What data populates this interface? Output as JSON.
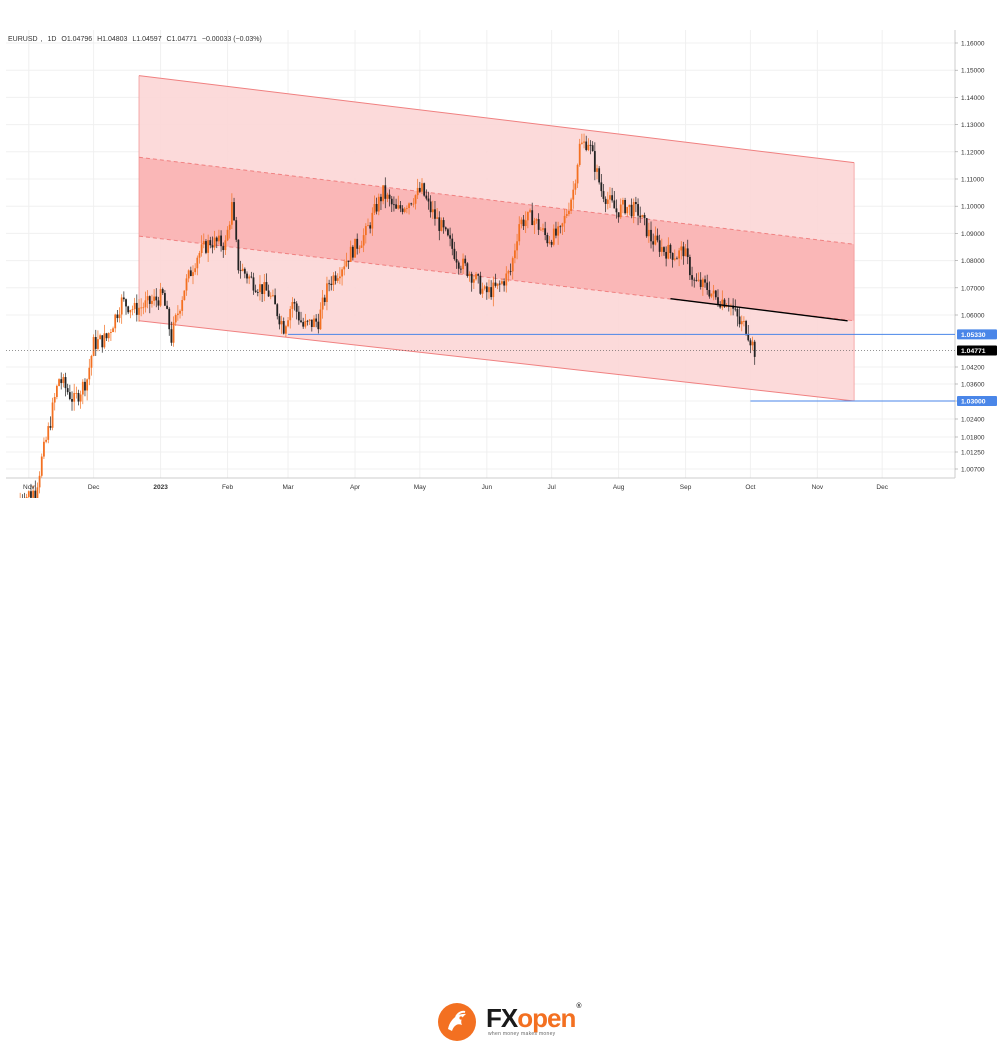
{
  "header": {
    "symbol": "EURUSD",
    "timeframe": "1D",
    "open": "O1.04796",
    "high": "H1.04803",
    "low": "L1.04597",
    "close": "C1.04771",
    "change": "−0.00033 (−0.03%)"
  },
  "brand": {
    "fx": "FX",
    "open": "open",
    "reg": "®",
    "slogan": "when money makes money"
  },
  "colors": {
    "bull": "#f37021",
    "bear": "#222222",
    "channel_outer": "#fcd6d6",
    "channel_inner": "#f9b3b3",
    "channel_line": "#f08080",
    "support_line": "#4a86e8",
    "trend_line": "#000000"
  },
  "chart_data": {
    "type": "candlestick",
    "symbol": "EURUSD",
    "x_tick_labels": [
      "Nov",
      "Dec",
      "2023",
      "Feb",
      "Mar",
      "Apr",
      "May",
      "Jun",
      "Jul",
      "Aug",
      "Sep",
      "Oct",
      "Nov",
      "Dec"
    ],
    "x_tick_dates": [
      "2022-11-01",
      "2022-12-01",
      "2023-01-01",
      "2023-02-01",
      "2023-03-01",
      "2023-04-01",
      "2023-05-01",
      "2023-06-01",
      "2023-07-01",
      "2023-08-01",
      "2023-09-01",
      "2023-10-01",
      "2023-11-01",
      "2023-12-01"
    ],
    "y_tick_labels": [
      "1.16000",
      "1.15000",
      "1.14000",
      "1.13000",
      "1.12000",
      "1.11000",
      "1.10000",
      "1.09000",
      "1.08000",
      "1.07000",
      "1.06000",
      "1.04200",
      "1.03600",
      "1.03000",
      "1.02400",
      "1.01800",
      "1.01250",
      "1.00700"
    ],
    "y_tick_values": [
      1.16,
      1.15,
      1.14,
      1.13,
      1.12,
      1.11,
      1.1,
      1.09,
      1.08,
      1.07,
      1.06,
      1.042,
      1.036,
      1.03,
      1.024,
      1.018,
      1.0125,
      1.007
    ],
    "price_labels": [
      {
        "value": "1.05330",
        "kind": "level"
      },
      {
        "value": "1.04771",
        "kind": "last"
      },
      {
        "value": "1.03000",
        "kind": "level"
      }
    ],
    "horizontal_levels": [
      {
        "price": 1.0533,
        "from": "2023-03-01",
        "to": "2023-12-31",
        "color": "#4a86e8"
      },
      {
        "price": 1.03,
        "from": "2023-10-01",
        "to": "2023-12-31",
        "color": "#4a86e8"
      }
    ],
    "trend_lines": [
      {
        "points": [
          [
            "2023-08-25",
            1.066
          ],
          [
            "2023-11-15",
            1.058
          ]
        ],
        "color": "#000000"
      }
    ],
    "regression_channel": {
      "start": "2022-12-22",
      "end": "2023-11-18",
      "upper": [
        1.148,
        1.116
      ],
      "upper_inner": [
        1.118,
        1.086
      ],
      "center": [
        1.089,
        1.058
      ],
      "lower": [
        1.058,
        1.03
      ]
    },
    "candle_path": [
      [
        "2022-10-27",
        0.997
      ],
      [
        "2022-11-04",
        1.0
      ],
      [
        "2022-11-10",
        1.02
      ],
      [
        "2022-11-15",
        1.038
      ],
      [
        "2022-11-22",
        1.03
      ],
      [
        "2022-11-28",
        1.038
      ],
      [
        "2022-12-01",
        1.05
      ],
      [
        "2022-12-07",
        1.052
      ],
      [
        "2022-12-14",
        1.065
      ],
      [
        "2022-12-20",
        1.062
      ],
      [
        "2022-12-26",
        1.064
      ],
      [
        "2023-01-02",
        1.067
      ],
      [
        "2023-01-06",
        1.052
      ],
      [
        "2023-01-12",
        1.07
      ],
      [
        "2023-01-18",
        1.082
      ],
      [
        "2023-01-24",
        1.087
      ],
      [
        "2023-01-31",
        1.086
      ],
      [
        "2023-02-03",
        1.1
      ],
      [
        "2023-02-06",
        1.078
      ],
      [
        "2023-02-13",
        1.072
      ],
      [
        "2023-02-20",
        1.068
      ],
      [
        "2023-02-27",
        1.056
      ],
      [
        "2023-03-03",
        1.065
      ],
      [
        "2023-03-08",
        1.056
      ],
      [
        "2023-03-15",
        1.058
      ],
      [
        "2023-03-20",
        1.072
      ],
      [
        "2023-03-24",
        1.076
      ],
      [
        "2023-03-31",
        1.084
      ],
      [
        "2023-04-06",
        1.09
      ],
      [
        "2023-04-11",
        1.1
      ],
      [
        "2023-04-14",
        1.105
      ],
      [
        "2023-04-20",
        1.098
      ],
      [
        "2023-04-26",
        1.102
      ],
      [
        "2023-05-02",
        1.106
      ],
      [
        "2023-05-05",
        1.1
      ],
      [
        "2023-05-11",
        1.092
      ],
      [
        "2023-05-19",
        1.08
      ],
      [
        "2023-05-26",
        1.074
      ],
      [
        "2023-05-31",
        1.068
      ],
      [
        "2023-06-06",
        1.07
      ],
      [
        "2023-06-12",
        1.076
      ],
      [
        "2023-06-16",
        1.094
      ],
      [
        "2023-06-22",
        1.096
      ],
      [
        "2023-06-29",
        1.088
      ],
      [
        "2023-07-05",
        1.09
      ],
      [
        "2023-07-11",
        1.106
      ],
      [
        "2023-07-14",
        1.122
      ],
      [
        "2023-07-18",
        1.124
      ],
      [
        "2023-07-24",
        1.106
      ],
      [
        "2023-07-31",
        1.098
      ],
      [
        "2023-08-04",
        1.1
      ],
      [
        "2023-08-10",
        1.098
      ],
      [
        "2023-08-16",
        1.088
      ],
      [
        "2023-08-22",
        1.084
      ],
      [
        "2023-08-28",
        1.082
      ],
      [
        "2023-08-31",
        1.084
      ],
      [
        "2023-09-05",
        1.072
      ],
      [
        "2023-09-11",
        1.07
      ],
      [
        "2023-09-15",
        1.066
      ],
      [
        "2023-09-21",
        1.065
      ],
      [
        "2023-09-26",
        1.057
      ],
      [
        "2023-09-29",
        1.056
      ],
      [
        "2023-10-03",
        1.0477
      ]
    ]
  }
}
